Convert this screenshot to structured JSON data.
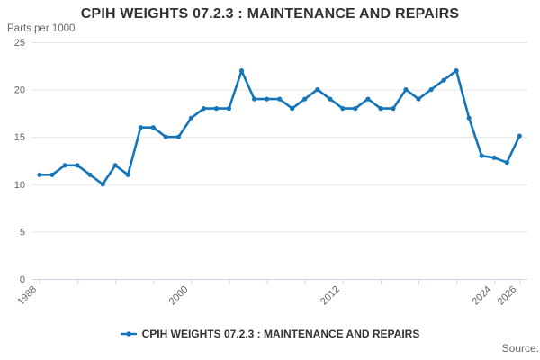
{
  "title": "CPIH WEIGHTS 07.2.3 : MAINTENANCE AND REPAIRS",
  "y_axis_unit": "Parts per 1000",
  "legend": {
    "label": "CPIH WEIGHTS 07.2.3 : MAINTENANCE AND REPAIRS"
  },
  "source_label": "Source:",
  "colors": {
    "line": "#1575b9",
    "axis": "#ccd6eb",
    "grid": "#e6e6e6",
    "text_muted": "#666666",
    "text_dark": "#333333"
  },
  "chart_data": {
    "type": "line",
    "title": "CPIH WEIGHTS 07.2.3 : MAINTENANCE AND REPAIRS",
    "xlabel": "",
    "ylabel": "Parts per 1000",
    "ylim": [
      0,
      25
    ],
    "y_ticks": [
      0,
      5,
      10,
      15,
      20,
      25
    ],
    "x_ticks": [
      1988,
      1991,
      1994,
      1997,
      2000,
      2003,
      2006,
      2009,
      2012,
      2015,
      2018,
      2021,
      2024,
      2026
    ],
    "x_tick_labels": [
      "1988",
      "2000",
      "2012",
      "2024",
      "2026"
    ],
    "grid": "horizontal",
    "legend_position": "bottom",
    "series_name": "CPIH WEIGHTS 07.2.3 : MAINTENANCE AND REPAIRS",
    "x": [
      1988,
      1989,
      1990,
      1991,
      1992,
      1993,
      1994,
      1995,
      1996,
      1997,
      1998,
      1999,
      2000,
      2001,
      2002,
      2003,
      2004,
      2005,
      2006,
      2007,
      2008,
      2009,
      2010,
      2011,
      2012,
      2013,
      2014,
      2015,
      2016,
      2017,
      2018,
      2019,
      2020,
      2021,
      2022,
      2023,
      2024,
      2025,
      2026
    ],
    "values": [
      11,
      11,
      12,
      12,
      11,
      10,
      12,
      11,
      16,
      16,
      15,
      15,
      17,
      18,
      18,
      18,
      22,
      19,
      19,
      19,
      18,
      19,
      20,
      19,
      18,
      18,
      19,
      18,
      18,
      20,
      19,
      20,
      21,
      22,
      17,
      13,
      12.8,
      12.3,
      15.1
    ]
  }
}
